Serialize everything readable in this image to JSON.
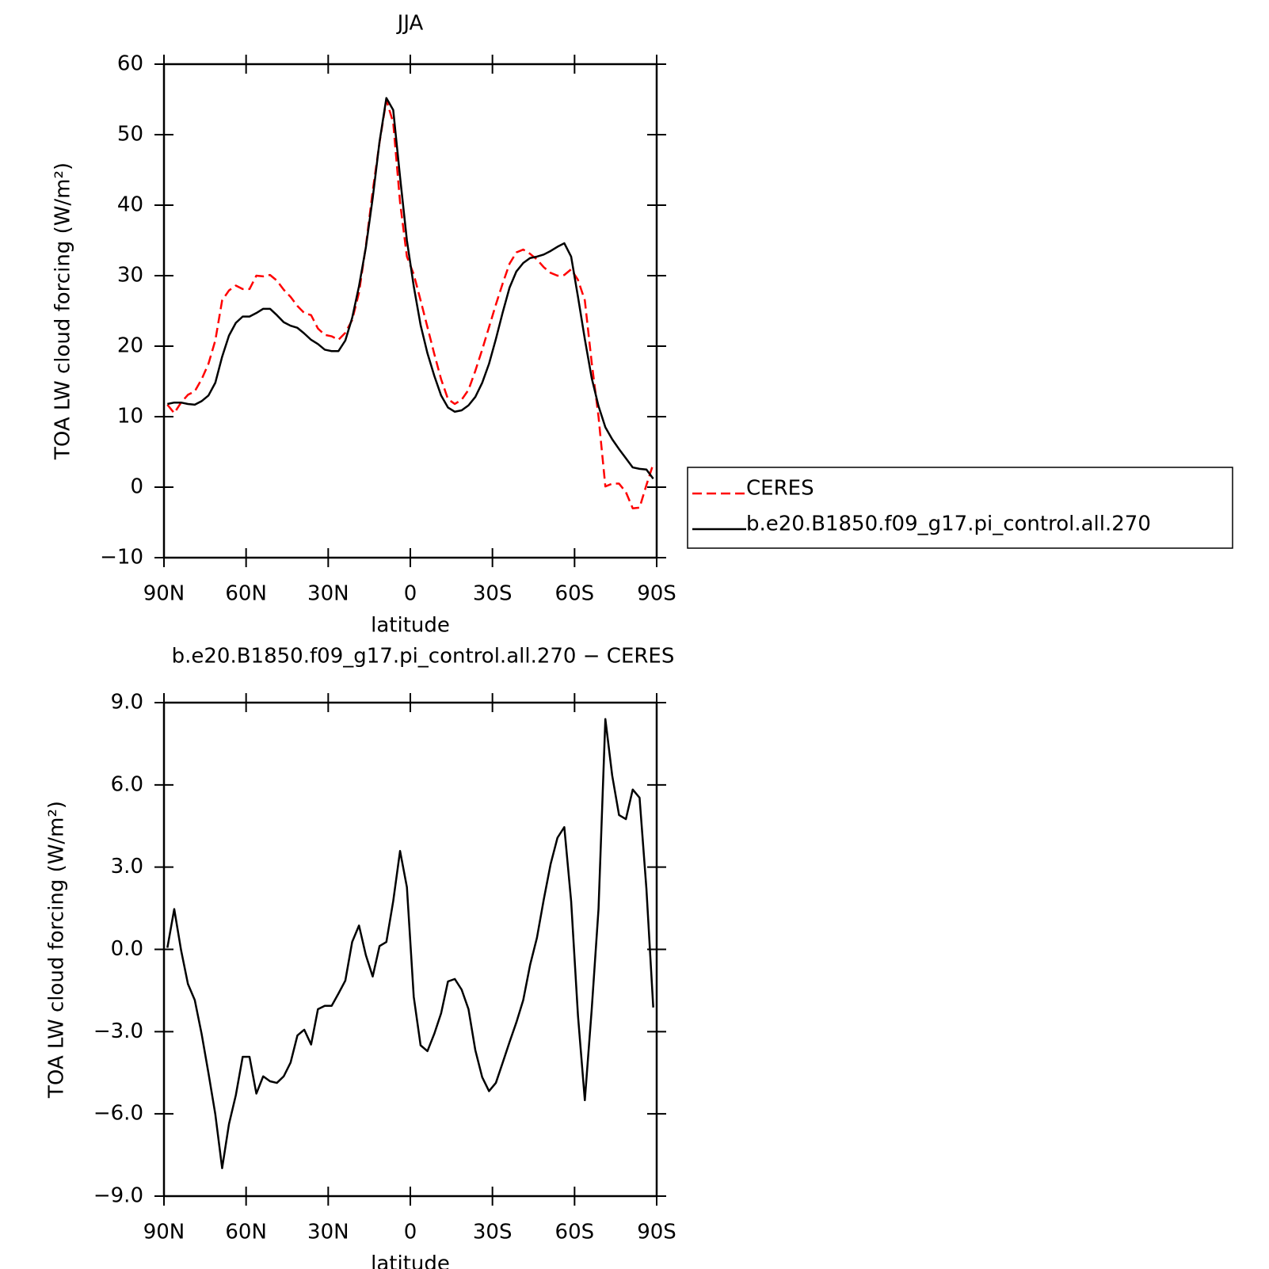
{
  "chart_data": [
    {
      "type": "line",
      "title": "JJA",
      "ylabel": "TOA LW cloud forcing (W/m²)",
      "xlabel": "latitude",
      "x": [
        88.75,
        86.25,
        83.75,
        81.25,
        78.75,
        76.25,
        73.75,
        71.25,
        68.75,
        66.25,
        63.75,
        61.25,
        58.75,
        56.25,
        53.75,
        51.25,
        48.75,
        46.25,
        43.75,
        41.25,
        38.75,
        36.25,
        33.75,
        31.25,
        28.75,
        26.25,
        23.75,
        21.25,
        18.75,
        16.25,
        13.75,
        11.25,
        8.75,
        6.25,
        3.75,
        1.25,
        -1.25,
        -3.75,
        -6.25,
        -8.75,
        -11.25,
        -13.75,
        -16.25,
        -18.75,
        -21.25,
        -23.75,
        -26.25,
        -28.75,
        -31.25,
        -33.75,
        -36.25,
        -38.75,
        -41.25,
        -43.75,
        -46.25,
        -48.75,
        -51.25,
        -53.75,
        -56.25,
        -58.75,
        -61.25,
        -63.75,
        -66.25,
        -68.75,
        -71.25,
        -73.75,
        -76.25,
        -78.75,
        -81.25,
        -83.75,
        -86.25,
        -88.75
      ],
      "xlim": [
        90,
        -90
      ],
      "xticks": [
        {
          "value": 90,
          "label": "90N"
        },
        {
          "value": 60,
          "label": "60N"
        },
        {
          "value": 30,
          "label": "30N"
        },
        0,
        {
          "value": -30,
          "label": "30S"
        },
        {
          "value": -60,
          "label": "60S"
        },
        {
          "value": -90,
          "label": "90S"
        }
      ],
      "ylim": [
        -10,
        60
      ],
      "yticks": [
        {
          "value": -10,
          "label": "−10"
        },
        0,
        10,
        20,
        30,
        40,
        50,
        60
      ],
      "legend": "right",
      "series": [
        {
          "name": "CERES",
          "color": "#ff0000",
          "linestyle": "dashed",
          "values": [
            11.7,
            10.5,
            12.0,
            13.1,
            13.6,
            15.3,
            17.5,
            20.8,
            26.5,
            27.9,
            28.6,
            28.1,
            28.1,
            30.0,
            29.9,
            30.1,
            29.3,
            28.0,
            27.0,
            25.7,
            24.7,
            24.4,
            22.5,
            21.6,
            21.4,
            20.9,
            21.9,
            23.7,
            27.6,
            34.2,
            42.0,
            48.9,
            54.9,
            51.7,
            40.4,
            32.7,
            30.2,
            26.5,
            22.7,
            18.9,
            15.3,
            12.5,
            11.8,
            12.4,
            13.8,
            16.5,
            19.5,
            22.7,
            25.9,
            28.9,
            31.7,
            33.3,
            33.7,
            33.1,
            32.3,
            31.2,
            30.4,
            30.0,
            30.1,
            30.9,
            29.4,
            26.5,
            17.7,
            10.0,
            0.1,
            0.5,
            0.5,
            -0.7,
            -3.0,
            -2.9,
            0.3,
            3.3
          ]
        },
        {
          "name": "b.e20.B1850.f09_g17.pi_control.all.270",
          "color": "#000000",
          "linestyle": "solid",
          "values": [
            11.8,
            12.0,
            12.0,
            11.8,
            11.7,
            12.2,
            13.0,
            14.8,
            18.5,
            21.5,
            23.3,
            24.2,
            24.2,
            24.7,
            25.3,
            25.3,
            24.4,
            23.4,
            22.9,
            22.6,
            21.8,
            20.9,
            20.3,
            19.5,
            19.3,
            19.3,
            20.8,
            24.0,
            28.5,
            34.0,
            41.0,
            49.0,
            55.2,
            53.5,
            44.0,
            35.0,
            28.5,
            23.0,
            19.0,
            15.8,
            13.0,
            11.3,
            10.7,
            10.9,
            11.6,
            12.8,
            14.8,
            17.5,
            21.0,
            24.8,
            28.3,
            30.6,
            31.8,
            32.5,
            32.7,
            33.0,
            33.5,
            34.1,
            34.6,
            32.7,
            27.0,
            21.0,
            15.5,
            11.5,
            8.5,
            6.8,
            5.4,
            4.1,
            2.8,
            2.6,
            2.5,
            1.2
          ]
        }
      ]
    },
    {
      "type": "line",
      "title": "b.e20.B1850.f09_g17.pi_control.all.270 − CERES",
      "ylabel": "TOA LW cloud forcing (W/m²)",
      "xlabel": "latitude",
      "x": [
        88.75,
        86.25,
        83.75,
        81.25,
        78.75,
        76.25,
        73.75,
        71.25,
        68.75,
        66.25,
        63.75,
        61.25,
        58.75,
        56.25,
        53.75,
        51.25,
        48.75,
        46.25,
        43.75,
        41.25,
        38.75,
        36.25,
        33.75,
        31.25,
        28.75,
        26.25,
        23.75,
        21.25,
        18.75,
        16.25,
        13.75,
        11.25,
        8.75,
        6.25,
        3.75,
        1.25,
        -1.25,
        -3.75,
        -6.25,
        -8.75,
        -11.25,
        -13.75,
        -16.25,
        -18.75,
        -21.25,
        -23.75,
        -26.25,
        -28.75,
        -31.25,
        -33.75,
        -36.25,
        -38.75,
        -41.25,
        -43.75,
        -46.25,
        -48.75,
        -51.25,
        -53.75,
        -56.25,
        -58.75,
        -61.25,
        -63.75,
        -66.25,
        -68.75,
        -71.25,
        -73.75,
        -76.25,
        -78.75,
        -81.25,
        -83.75,
        -86.25,
        -88.75
      ],
      "xlim": [
        90,
        -90
      ],
      "xticks": [
        {
          "value": 90,
          "label": "90N"
        },
        {
          "value": 60,
          "label": "60N"
        },
        {
          "value": 30,
          "label": "30N"
        },
        0,
        {
          "value": -30,
          "label": "30S"
        },
        {
          "value": -60,
          "label": "60S"
        },
        {
          "value": -90,
          "label": "90S"
        }
      ],
      "ylim": [
        -9,
        9
      ],
      "yticks": [
        {
          "value": -9,
          "label": "−9.0"
        },
        {
          "value": -6,
          "label": "−6.0"
        },
        {
          "value": -3,
          "label": "−3.0"
        },
        {
          "value": 0,
          "label": "0.0"
        },
        {
          "value": 3,
          "label": "3.0"
        },
        {
          "value": 6,
          "label": "6.0"
        },
        {
          "value": 9,
          "label": "9.0"
        }
      ],
      "series": [
        {
          "color": "#000000",
          "linestyle": "solid",
          "values": [
            0.06,
            1.47,
            -0.03,
            -1.26,
            -1.85,
            -3.08,
            -4.51,
            -6.01,
            -7.98,
            -6.37,
            -5.32,
            -3.92,
            -3.92,
            -5.26,
            -4.63,
            -4.81,
            -4.87,
            -4.63,
            -4.13,
            -3.14,
            -2.93,
            -3.47,
            -2.18,
            -2.06,
            -2.06,
            -1.61,
            -1.14,
            0.27,
            0.87,
            -0.21,
            -0.99,
            0.12,
            0.27,
            1.76,
            3.59,
            2.27,
            -1.73,
            -3.5,
            -3.71,
            -3.08,
            -2.33,
            -1.17,
            -1.08,
            -1.47,
            -2.18,
            -3.68,
            -4.66,
            -5.17,
            -4.87,
            -4.13,
            -3.38,
            -2.66,
            -1.85,
            -0.57,
            0.42,
            1.82,
            3.11,
            4.07,
            4.46,
            1.76,
            -2.42,
            -5.5,
            -2.21,
            1.47,
            8.4,
            6.34,
            4.9,
            4.75,
            5.83,
            5.53,
            2.21,
            -2.12
          ]
        }
      ]
    }
  ]
}
